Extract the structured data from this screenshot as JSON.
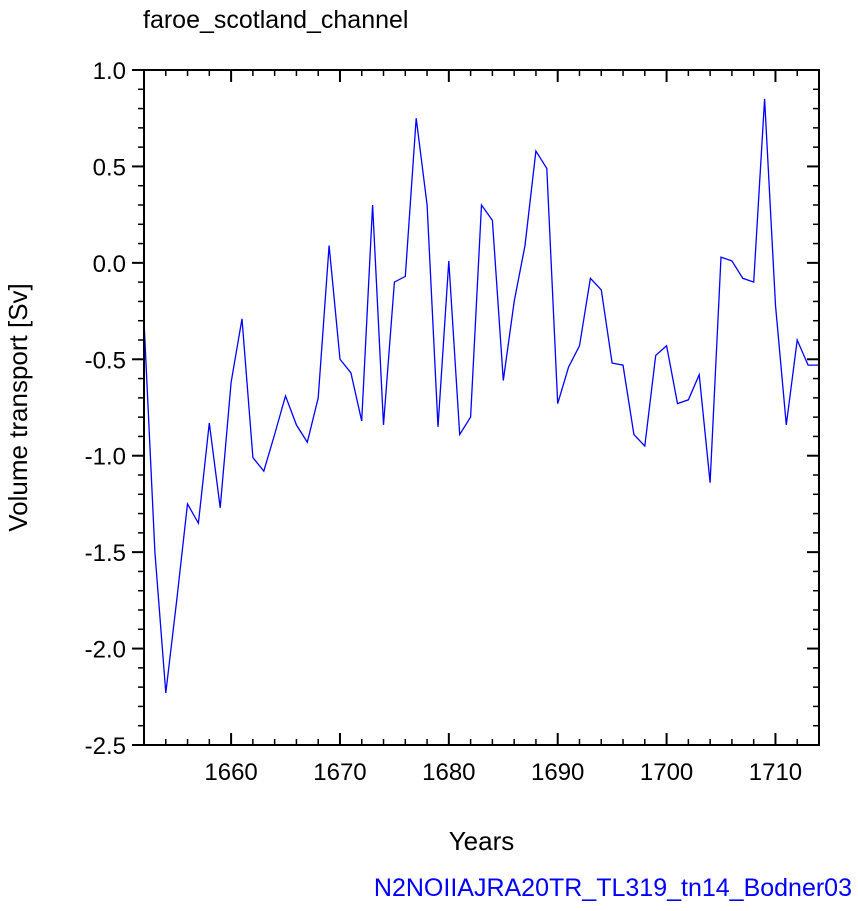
{
  "chart_data": {
    "type": "line",
    "title": "faroe_scotland_channel",
    "xlabel": "Years",
    "ylabel": "Volume transport [Sv]",
    "footer": "N2NOIIAJRA20TR_TL319_tn14_Bodner03",
    "xlim": [
      1652,
      1714
    ],
    "ylim": [
      -2.5,
      1.0
    ],
    "xticks": [
      1660,
      1670,
      1680,
      1690,
      1700,
      1710
    ],
    "xtick_labels": [
      "1660",
      "1670",
      "1680",
      "1690",
      "1700",
      "1710"
    ],
    "yticks": [
      -2.5,
      -2.0,
      -1.5,
      -1.0,
      -0.5,
      0.0,
      0.5,
      1.0
    ],
    "ytick_labels": [
      "-2.5",
      "-2.0",
      "-1.5",
      "-1.0",
      "-0.5",
      "0.0",
      "0.5",
      "1.0"
    ],
    "grid": false,
    "series": [
      {
        "color": "#0000ff",
        "x": [
          1652,
          1653,
          1654,
          1655,
          1656,
          1657,
          1658,
          1659,
          1660,
          1661,
          1662,
          1663,
          1664,
          1665,
          1666,
          1667,
          1668,
          1669,
          1670,
          1671,
          1672,
          1673,
          1674,
          1675,
          1676,
          1677,
          1678,
          1679,
          1680,
          1681,
          1682,
          1683,
          1684,
          1685,
          1686,
          1687,
          1688,
          1689,
          1690,
          1691,
          1692,
          1693,
          1694,
          1695,
          1696,
          1697,
          1698,
          1699,
          1700,
          1701,
          1702,
          1703,
          1704,
          1705,
          1706,
          1707,
          1708,
          1709,
          1710,
          1711,
          1712,
          1713,
          1714
        ],
        "y": [
          -0.3,
          -1.5,
          -2.23,
          -1.75,
          -1.25,
          -1.35,
          -0.83,
          -1.27,
          -0.62,
          -0.29,
          -1.01,
          -1.08,
          -0.89,
          -0.69,
          -0.84,
          -0.93,
          -0.7,
          0.09,
          -0.5,
          -0.57,
          -0.82,
          0.3,
          -0.84,
          -0.1,
          -0.07,
          0.75,
          0.3,
          -0.85,
          0.01,
          -0.89,
          -0.8,
          0.3,
          0.22,
          -0.61,
          -0.2,
          0.09,
          0.58,
          0.49,
          -0.73,
          -0.54,
          -0.43,
          -0.08,
          -0.14,
          -0.52,
          -0.53,
          -0.89,
          -0.95,
          -0.48,
          -0.43,
          -0.73,
          -0.71,
          -0.58,
          -1.14,
          0.03,
          0.01,
          -0.08,
          -0.1,
          0.85,
          -0.22,
          -0.84,
          -0.4,
          -0.53,
          -0.53
        ]
      }
    ]
  }
}
